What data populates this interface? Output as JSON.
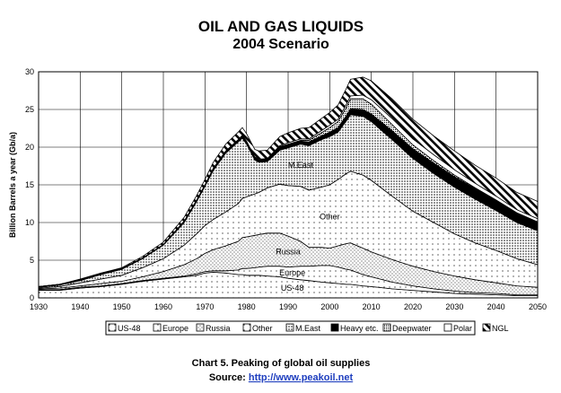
{
  "chart_data": {
    "type": "area",
    "title": "OIL AND GAS LIQUIDS",
    "subtitle": "2004 Scenario",
    "ylabel": "Billion Barrels a year (Gb/a)",
    "xlabel": "",
    "xlim": [
      1930,
      2050
    ],
    "ylim": [
      0,
      30
    ],
    "grid": true,
    "legend_position": "bottom",
    "x_ticks": [
      "1930",
      "1940",
      "1950",
      "1960",
      "1970",
      "1980",
      "1990",
      "2000",
      "2010",
      "2020",
      "2030",
      "2040",
      "2050"
    ],
    "y_ticks": [
      "0",
      "5",
      "10",
      "15",
      "20",
      "25",
      "30"
    ],
    "stacked": true,
    "x": [
      1930,
      1935,
      1940,
      1945,
      1950,
      1955,
      1960,
      1965,
      1968,
      1970,
      1972,
      1975,
      1978,
      1979,
      1980,
      1982,
      1983,
      1985,
      1988,
      1990,
      1993,
      1995,
      1998,
      2000,
      2002,
      2004,
      2005,
      2008,
      2010,
      2015,
      2020,
      2025,
      2030,
      2035,
      2040,
      2045,
      2050
    ],
    "series": [
      {
        "name": "US-48",
        "values": [
          1.0,
          1.0,
          1.3,
          1.5,
          1.8,
          2.2,
          2.5,
          2.8,
          3.0,
          3.3,
          3.4,
          3.3,
          3.1,
          3.1,
          3.0,
          3.0,
          3.0,
          2.9,
          2.8,
          2.6,
          2.4,
          2.3,
          2.1,
          2.0,
          1.9,
          1.8,
          1.8,
          1.6,
          1.5,
          1.2,
          1.0,
          0.8,
          0.6,
          0.5,
          0.4,
          0.3,
          0.3
        ]
      },
      {
        "name": "Europe",
        "values": [
          0.1,
          0.1,
          0.1,
          0.1,
          0.1,
          0.1,
          0.1,
          0.1,
          0.2,
          0.2,
          0.2,
          0.3,
          0.6,
          0.8,
          0.9,
          1.0,
          1.1,
          1.3,
          1.4,
          1.5,
          1.8,
          1.9,
          2.2,
          2.3,
          2.2,
          2.0,
          1.9,
          1.5,
          1.3,
          0.9,
          0.6,
          0.4,
          0.3,
          0.2,
          0.2,
          0.1,
          0.1
        ]
      },
      {
        "name": "Russia",
        "values": [
          0.1,
          0.2,
          0.2,
          0.3,
          0.3,
          0.5,
          0.9,
          1.5,
          2.0,
          2.4,
          2.8,
          3.3,
          3.8,
          4.1,
          4.2,
          4.3,
          4.3,
          4.4,
          4.4,
          4.1,
          3.3,
          2.5,
          2.4,
          2.3,
          2.8,
          3.4,
          3.6,
          3.5,
          3.3,
          3.0,
          2.6,
          2.3,
          2.0,
          1.7,
          1.4,
          1.2,
          1.0
        ]
      },
      {
        "name": "Other",
        "values": [
          0.1,
          0.2,
          0.4,
          0.6,
          0.8,
          1.2,
          1.7,
          2.6,
          3.3,
          3.7,
          4.0,
          4.5,
          5.0,
          5.2,
          5.3,
          5.5,
          5.6,
          6.0,
          6.5,
          6.7,
          7.3,
          7.6,
          8.0,
          8.4,
          8.8,
          9.3,
          9.5,
          9.7,
          9.5,
          8.4,
          7.3,
          6.5,
          5.6,
          4.9,
          4.3,
          3.6,
          3.0
        ]
      },
      {
        "name": "M.East",
        "values": [
          0.1,
          0.2,
          0.3,
          0.6,
          0.8,
          1.2,
          1.8,
          3.0,
          4.3,
          5.2,
          6.5,
          7.8,
          8.2,
          8.0,
          7.0,
          4.5,
          4.0,
          3.5,
          4.5,
          5.0,
          5.6,
          5.9,
          6.3,
          6.4,
          6.3,
          7.0,
          7.5,
          7.8,
          7.8,
          7.5,
          7.0,
          6.5,
          6.2,
          5.8,
          5.3,
          4.8,
          4.5
        ]
      },
      {
        "name": "Heavy etc.",
        "values": [
          0.1,
          0.1,
          0.1,
          0.1,
          0.1,
          0.1,
          0.1,
          0.2,
          0.2,
          0.2,
          0.3,
          0.3,
          0.3,
          0.3,
          0.3,
          0.3,
          0.3,
          0.3,
          0.4,
          0.4,
          0.4,
          0.5,
          0.5,
          0.6,
          0.6,
          0.7,
          0.8,
          0.9,
          1.0,
          1.2,
          1.3,
          1.4,
          1.4,
          1.4,
          1.3,
          1.3,
          1.2
        ]
      },
      {
        "name": "Deepwater",
        "values": [
          0,
          0,
          0,
          0,
          0,
          0,
          0,
          0,
          0,
          0,
          0,
          0,
          0,
          0,
          0,
          0,
          0,
          0,
          0.1,
          0.1,
          0.1,
          0.2,
          0.4,
          0.6,
          0.8,
          1.1,
          1.3,
          1.4,
          1.3,
          0.8,
          0.5,
          0.3,
          0.2,
          0.1,
          0.1,
          0,
          0
        ]
      },
      {
        "name": "Polar",
        "values": [
          0,
          0,
          0,
          0,
          0,
          0,
          0,
          0,
          0,
          0,
          0,
          0,
          0,
          0.1,
          0.1,
          0.1,
          0.1,
          0.1,
          0.1,
          0.2,
          0.2,
          0.2,
          0.3,
          0.3,
          0.3,
          0.4,
          0.4,
          0.5,
          0.6,
          0.8,
          0.8,
          0.8,
          0.7,
          0.6,
          0.5,
          0.4,
          0.4
        ]
      },
      {
        "name": "NGL",
        "values": [
          0,
          0,
          0.1,
          0.1,
          0.1,
          0.2,
          0.3,
          0.5,
          0.6,
          0.7,
          0.8,
          0.9,
          1.0,
          1.0,
          1.0,
          1.0,
          1.1,
          1.1,
          1.2,
          1.3,
          1.4,
          1.5,
          1.6,
          1.7,
          1.9,
          2.1,
          2.2,
          2.4,
          2.5,
          2.6,
          2.6,
          2.5,
          2.5,
          2.4,
          2.4,
          2.3,
          2.3
        ]
      }
    ],
    "annotations": [
      "M.East",
      "Other",
      "Russia",
      "Europe",
      "US-48"
    ]
  },
  "caption": "Chart 5. Peaking of global oil supplies",
  "source_label": "Source:",
  "source_url": "http://www.peakoil.net",
  "colors": {
    "frame": "#000000",
    "grid": "#000000",
    "background": "#ffffff",
    "link": "#1f3fbf"
  }
}
